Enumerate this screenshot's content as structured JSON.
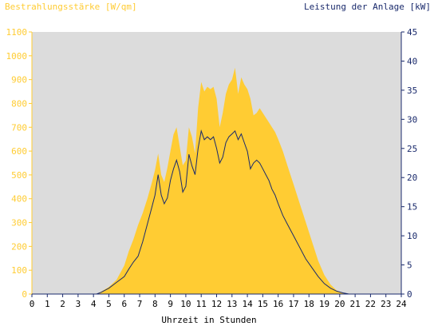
{
  "chart_data": {
    "type": "area",
    "title_left": "Bestrahlungsstärke [W/qm]",
    "title_right": "Leistung der Anlage [kW]",
    "xlabel": "Uhrzeit in Stunden",
    "xlim": [
      0,
      24
    ],
    "x_ticks": [
      "0",
      "1",
      "2",
      "3",
      "4",
      "5",
      "6",
      "7",
      "8",
      "9",
      "10",
      "11",
      "12",
      "13",
      "14",
      "15",
      "16",
      "17",
      "18",
      "19",
      "20",
      "21",
      "22",
      "23",
      "24"
    ],
    "y_left": {
      "ylim": [
        0,
        1100
      ],
      "ticks": [
        "0",
        "100",
        "200",
        "300",
        "400",
        "500",
        "600",
        "700",
        "800",
        "900",
        "1000",
        "1100"
      ],
      "color": "#ffcc33"
    },
    "y_right": {
      "ylim": [
        0,
        45
      ],
      "ticks": [
        "0",
        "5",
        "10",
        "15",
        "20",
        "25",
        "30",
        "35",
        "40",
        "45"
      ],
      "color": "#1a2a6c"
    },
    "grid": false,
    "colors": {
      "plot_background": "#dcdcdc",
      "irradiance_fill": "#ffcc33",
      "power_line": "#1a2a6c"
    },
    "series": [
      {
        "axis": "left",
        "style": "area",
        "x": [
          0,
          4.2,
          4.5,
          5.0,
          5.5,
          6.0,
          6.3,
          6.6,
          6.9,
          7.2,
          7.5,
          7.8,
          8.0,
          8.2,
          8.4,
          8.6,
          8.8,
          9.0,
          9.2,
          9.4,
          9.6,
          9.8,
          10.0,
          10.2,
          10.4,
          10.6,
          10.8,
          11.0,
          11.2,
          11.4,
          11.6,
          11.8,
          12.0,
          12.2,
          12.4,
          12.6,
          12.8,
          13.0,
          13.2,
          13.4,
          13.6,
          13.8,
          14.0,
          14.2,
          14.4,
          14.6,
          14.8,
          15.0,
          15.2,
          15.4,
          15.6,
          15.8,
          16.0,
          16.3,
          16.6,
          17.0,
          17.4,
          17.8,
          18.2,
          18.6,
          19.0,
          19.4,
          19.8,
          20.2,
          20.6,
          21.0,
          24
        ],
        "values": [
          0,
          0,
          10,
          30,
          60,
          120,
          180,
          230,
          290,
          340,
          400,
          470,
          520,
          590,
          500,
          470,
          530,
          600,
          670,
          700,
          620,
          540,
          560,
          700,
          660,
          590,
          780,
          890,
          850,
          870,
          860,
          870,
          820,
          700,
          760,
          840,
          880,
          900,
          950,
          840,
          910,
          880,
          860,
          820,
          750,
          760,
          780,
          760,
          740,
          720,
          700,
          680,
          650,
          600,
          540,
          460,
          380,
          300,
          220,
          140,
          80,
          40,
          15,
          5,
          0,
          0,
          0
        ]
      },
      {
        "axis": "right",
        "style": "line",
        "x": [
          0,
          4.2,
          4.5,
          5.0,
          5.5,
          6.0,
          6.3,
          6.6,
          6.9,
          7.2,
          7.5,
          7.8,
          8.0,
          8.2,
          8.4,
          8.6,
          8.8,
          9.0,
          9.2,
          9.4,
          9.6,
          9.8,
          10.0,
          10.2,
          10.4,
          10.6,
          10.8,
          11.0,
          11.2,
          11.4,
          11.6,
          11.8,
          12.0,
          12.2,
          12.4,
          12.6,
          12.8,
          13.0,
          13.2,
          13.4,
          13.6,
          13.8,
          14.0,
          14.2,
          14.4,
          14.6,
          14.8,
          15.0,
          15.2,
          15.4,
          15.6,
          15.8,
          16.0,
          16.3,
          16.6,
          17.0,
          17.4,
          17.8,
          18.2,
          18.6,
          19.0,
          19.4,
          19.8,
          20.2,
          20.6,
          21.0,
          24
        ],
        "values": [
          0,
          0,
          0.3,
          1.0,
          2.0,
          3.0,
          4.3,
          5.5,
          6.5,
          9.0,
          12.0,
          15.0,
          17.0,
          20.5,
          17.0,
          15.5,
          16.5,
          19.5,
          21.5,
          23.0,
          21.0,
          17.5,
          18.5,
          24.0,
          22.0,
          20.5,
          25.0,
          28.0,
          26.5,
          27.0,
          26.5,
          27.0,
          25.0,
          22.5,
          23.5,
          26.0,
          27.0,
          27.5,
          28.0,
          26.5,
          27.5,
          26.0,
          24.5,
          21.5,
          22.5,
          23.0,
          22.5,
          21.5,
          20.5,
          19.5,
          18.0,
          17.0,
          15.5,
          13.5,
          12.0,
          10.0,
          8.0,
          6.0,
          4.5,
          3.0,
          1.8,
          1.0,
          0.5,
          0.2,
          0,
          0,
          0
        ]
      }
    ]
  }
}
